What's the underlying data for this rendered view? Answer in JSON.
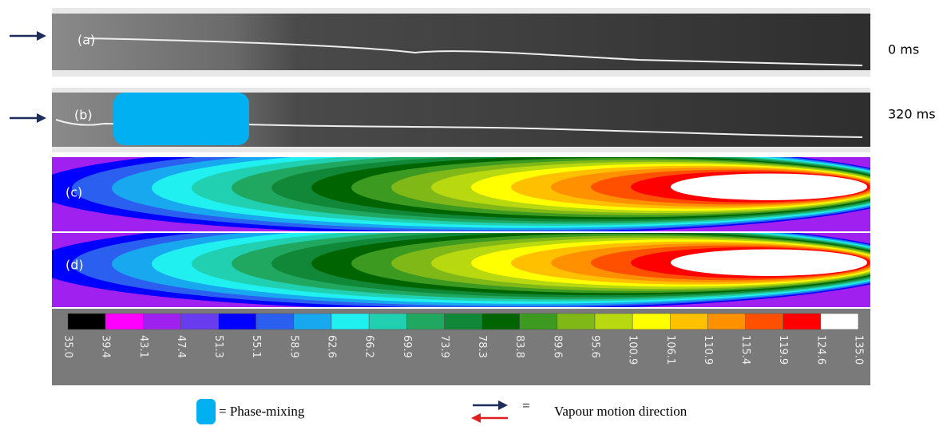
{
  "panels": [
    {
      "label": "(a)",
      "time": "0 ms"
    },
    {
      "label": "(b)",
      "time": "320 ms"
    },
    {
      "label": "(c)"
    },
    {
      "label": "(d)"
    }
  ],
  "colorbar": {
    "colors": [
      "#000000",
      "#ff00ff",
      "#a020f0",
      "#6a3cf0",
      "#0000ff",
      "#2a5ff0",
      "#18a8f0",
      "#20f0f0",
      "#20d0b0",
      "#20a860",
      "#108838",
      "#006400",
      "#3c9a20",
      "#80b818",
      "#b8d810",
      "#ffff00",
      "#ffc000",
      "#ff9000",
      "#ff5000",
      "#ff0000",
      "#ffffff"
    ],
    "labels": [
      "35.0",
      "39.4",
      "43.1",
      "47.4",
      "51.3",
      "55.1",
      "58.9",
      "62.6",
      "66.2",
      "69.9",
      "73.9",
      "78.3",
      "83.8",
      "89.6",
      "95.6",
      "100.9",
      "106.1",
      "110.9",
      "115.4",
      "119.9",
      "124.6",
      "135.0"
    ]
  },
  "legend": {
    "phase_mixing": "= Phase-mixing",
    "equals": "=",
    "vapour": "Vapour motion direction"
  }
}
